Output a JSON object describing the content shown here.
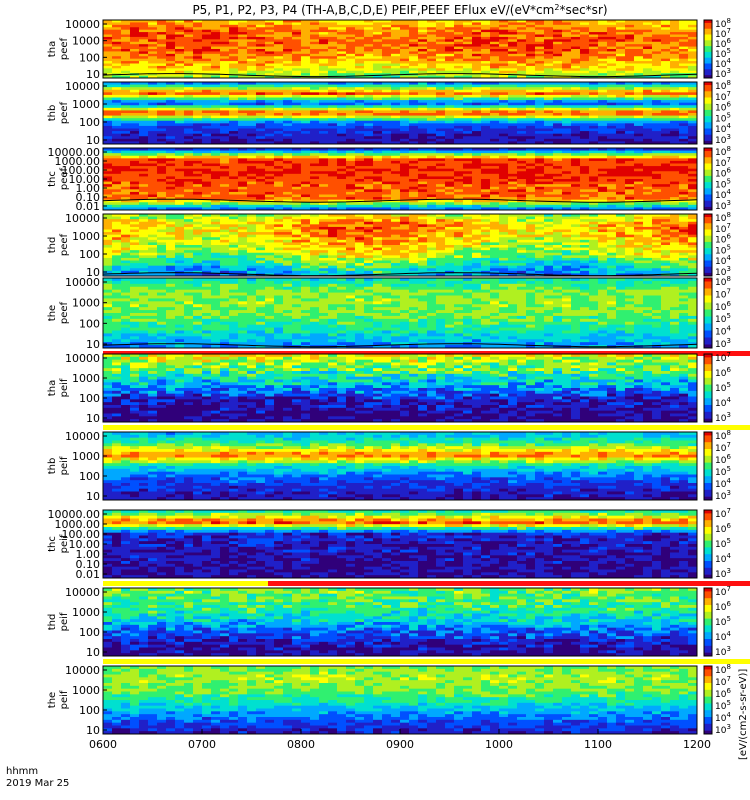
{
  "chart_data": {
    "type": "heatmap",
    "title": "P5, P1, P2, P3, P4 (TH-A,B,C,D,E) PEIF,PEEF EFlux eV/(eV*cm2*sec*sr)",
    "title_parts": {
      "main": "P5, P1, P2, P3, P4 (TH-A,B,C,D,E) PEIF,PEEF EFlux eV/(eV*cm",
      "sup": "2",
      "tail": "*sec*sr)"
    },
    "x_axis": {
      "ticks": [
        "0600",
        "0700",
        "0800",
        "0900",
        "1000",
        "1100",
        "1200"
      ],
      "footer_line1": "hhmm",
      "footer_line2": "2019 Mar 25"
    },
    "colorbar_label": "[eV/(cm2-s-sr-eV)]",
    "colormap": [
      "#30007a",
      "#2020c8",
      "#0050ff",
      "#00a8ff",
      "#00e0d0",
      "#30f070",
      "#b0f020",
      "#ffff00",
      "#ffb000",
      "#ff5000",
      "#e00000"
    ],
    "panels": [
      {
        "id": "tha-peef",
        "label": [
          "tha",
          "peef"
        ],
        "yticks": [
          "10000",
          "1000",
          "100",
          "10"
        ],
        "cbar_ticks": [
          "10^8",
          "10^7",
          "10^6",
          "10^5",
          "10^4",
          "10^3"
        ],
        "profile": [
          0.78,
          0.86,
          0.9,
          0.88,
          0.82,
          0.74,
          0.55
        ],
        "time_drift": 0.04,
        "noise": 0.1,
        "line_overlay": true,
        "line_level": 0.05,
        "bar_after": false
      },
      {
        "id": "thb-peef",
        "label": [
          "thb",
          "peef"
        ],
        "yticks": [
          "10000",
          "1000",
          "100",
          "10"
        ],
        "cbar_ticks": [
          "10^8",
          "10^7",
          "10^6",
          "10^5",
          "10^4",
          "10^3"
        ],
        "profile": [
          0.28,
          0.92,
          0.15,
          0.95,
          0.22,
          0.1,
          0.05
        ],
        "time_drift": 0.0,
        "noise": 0.08,
        "line_overlay": false,
        "bar_after": false
      },
      {
        "id": "thc-peef",
        "label": [
          "thc",
          "peef"
        ],
        "yticks": [
          "10000.00",
          "1000.00",
          "100.00",
          "10.00",
          "1.00",
          "0.10",
          "0.01"
        ],
        "cbar_ticks": [
          "10^8",
          "10^7",
          "10^6",
          "10^5",
          "10^4",
          "10^3"
        ],
        "profile": [
          0.15,
          0.92,
          0.95,
          0.93,
          0.9,
          0.88,
          0.25
        ],
        "time_drift": 0.0,
        "noise": 0.08,
        "line_overlay": true,
        "line_level": 0.15,
        "bar_after": false
      },
      {
        "id": "thd-peef",
        "label": [
          "thd",
          "peef"
        ],
        "yticks": [
          "10000",
          "1000",
          "100",
          "10"
        ],
        "cbar_ticks": [
          "10^8",
          "10^7",
          "10^6",
          "10^5",
          "10^4",
          "10^3"
        ],
        "profile": [
          0.65,
          0.8,
          0.78,
          0.7,
          0.62,
          0.45,
          0.3
        ],
        "time_drift": 0.1,
        "noise": 0.12,
        "line_overlay": true,
        "line_level": 0.03,
        "bar_after": false
      },
      {
        "id": "the-peef",
        "label": [
          "the",
          "peef"
        ],
        "yticks": [
          "10000",
          "1000",
          "100",
          "10"
        ],
        "cbar_ticks": [
          "10^8",
          "10^7",
          "10^6",
          "10^5",
          "10^4",
          "10^3"
        ],
        "profile": [
          0.42,
          0.55,
          0.58,
          0.55,
          0.48,
          0.38,
          0.28
        ],
        "time_drift": 0.0,
        "noise": 0.09,
        "line_overlay": true,
        "line_level": 0.04,
        "bar_after": true,
        "bar_color": "#ff1010"
      },
      {
        "id": "tha-peif",
        "label": [
          "tha",
          "peif"
        ],
        "yticks": [
          "10000",
          "1000",
          "100",
          "10"
        ],
        "cbar_ticks": [
          "10^7",
          "10^6",
          "10^5",
          "10^4",
          "10^3"
        ],
        "profile": [
          0.68,
          0.55,
          0.42,
          0.28,
          0.1,
          0.02,
          0.0
        ],
        "time_drift": 0.0,
        "noise": 0.15,
        "line_overlay": false,
        "bar_after": true,
        "bar_color": "#ffff00"
      },
      {
        "id": "thb-peif",
        "label": [
          "thb",
          "peif"
        ],
        "yticks": [
          "10000",
          "1000",
          "100",
          "10"
        ],
        "cbar_ticks": [
          "10^8",
          "10^7",
          "10^6",
          "10^5",
          "10^4",
          "10^3"
        ],
        "profile": [
          0.32,
          0.5,
          0.88,
          0.4,
          0.22,
          0.12,
          0.06
        ],
        "time_drift": 0.0,
        "noise": 0.08,
        "line_overlay": false,
        "bar_after": false
      },
      {
        "id": "thc-peif",
        "label": [
          "thc",
          "peif"
        ],
        "yticks": [
          "10000.00",
          "1000.00",
          "100.00",
          "10.00",
          "1.00",
          "0.10",
          "0.01"
        ],
        "cbar_ticks": [
          "10^7",
          "10^6",
          "10^5",
          "10^4",
          "10^3"
        ],
        "profile": [
          0.45,
          0.92,
          0.12,
          0.08,
          0.06,
          0.05,
          0.04
        ],
        "time_drift": 0.0,
        "noise": 0.1,
        "line_overlay": false,
        "bar_after": true,
        "bar_color": "#ff1010",
        "bar_split_color": "#ffff00"
      },
      {
        "id": "thd-peif",
        "label": [
          "thd",
          "peif"
        ],
        "yticks": [
          "10000",
          "1000",
          "100",
          "10"
        ],
        "cbar_ticks": [
          "10^7",
          "10^6",
          "10^5",
          "10^4",
          "10^3"
        ],
        "profile": [
          0.55,
          0.52,
          0.45,
          0.35,
          0.2,
          0.08,
          0.02
        ],
        "time_drift": 0.0,
        "noise": 0.12,
        "line_overlay": false,
        "bar_after": true,
        "bar_color": "#ffff00"
      },
      {
        "id": "the-peif",
        "label": [
          "the",
          "peif"
        ],
        "yticks": [
          "10000",
          "1000",
          "100",
          "10"
        ],
        "cbar_ticks": [
          "10^8",
          "10^7",
          "10^6",
          "10^5",
          "10^4",
          "10^3"
        ],
        "profile": [
          0.55,
          0.6,
          0.55,
          0.45,
          0.32,
          0.18,
          0.08
        ],
        "time_drift": 0.0,
        "noise": 0.08,
        "line_overlay": false,
        "bar_after": false
      }
    ]
  }
}
